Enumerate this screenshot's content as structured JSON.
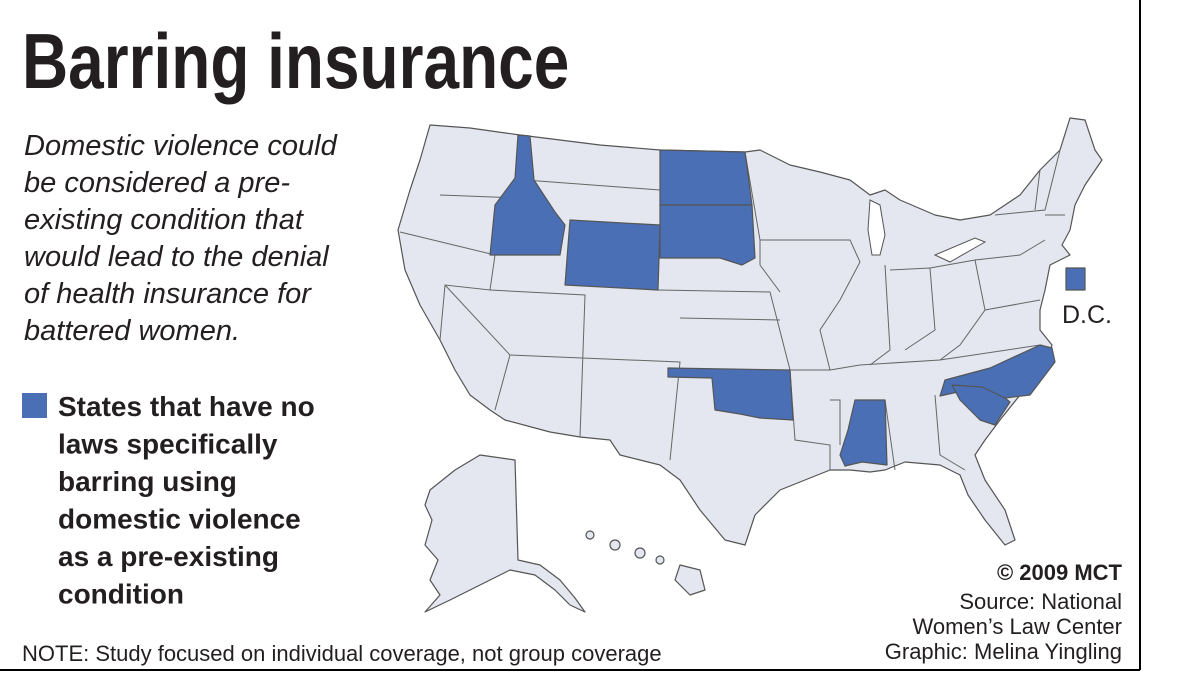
{
  "header": {
    "title": "Barring insurance"
  },
  "intro": {
    "lines": [
      "Domestic violence could",
      "be considered a pre-",
      "existing condition that",
      "would lead to the denial",
      "of health insurance for",
      "battered women."
    ]
  },
  "legend": {
    "lines": [
      "States that have no",
      "laws specifically",
      "barring using",
      "domestic violence",
      "as a pre-existing",
      "condition"
    ]
  },
  "map": {
    "dc_label": "D.C."
  },
  "credits": {
    "copyright": "© 2009 MCT",
    "source": [
      "Source: National",
      "Women’s Law Center"
    ],
    "graphic": "Graphic: Melina Yingling"
  },
  "note": "NOTE: Study focused on individual coverage, not group coverage"
}
